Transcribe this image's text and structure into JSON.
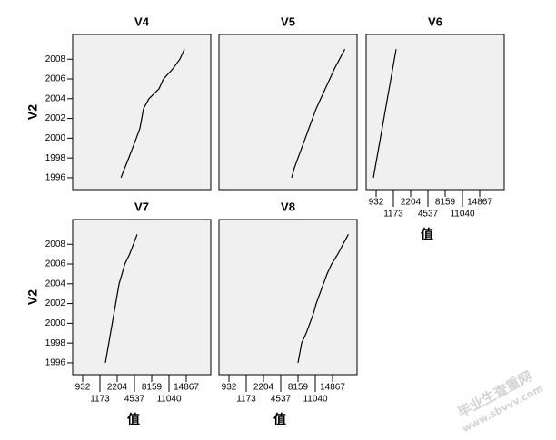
{
  "chart_data": {
    "type": "line",
    "xlabel": "值",
    "ylabel": "V2",
    "xlim": [
      792,
      20495
    ],
    "ylim": [
      1994.8,
      2010.5
    ],
    "xticks": [
      932,
      1173,
      2204,
      4537,
      8159,
      11040,
      14867
    ],
    "yticks": [
      1996,
      1998,
      2000,
      2002,
      2004,
      2006,
      2008
    ],
    "color": "#000000",
    "panels": [
      {
        "title": "V4",
        "show_xaxis": false,
        "show_yaxis": true,
        "x": [
          2720,
          3240,
          3760,
          4280,
          4920,
          5680,
          6060,
          6440,
          7590,
          9370,
          10130,
          11850,
          13460,
          14460
        ],
        "y": [
          1996,
          1997,
          1998,
          1999,
          2000,
          2001,
          2002,
          2003,
          2004,
          2005,
          2006,
          2007,
          2008,
          2009
        ]
      },
      {
        "title": "V5",
        "show_xaxis": false,
        "show_yaxis": false,
        "x": [
          6820,
          7400,
          8159,
          8765,
          9370,
          9980,
          10590,
          11240,
          12250,
          13260,
          14260,
          15270,
          16480,
          17690
        ],
        "y": [
          1996,
          1997,
          1998,
          1999,
          2000,
          2001,
          2002,
          2003,
          2004,
          2005,
          2006,
          2007,
          2008,
          2009
        ]
      },
      {
        "title": "V6",
        "show_xaxis": true,
        "show_yaxis": false,
        "x": [
          894,
          1336
        ],
        "y": [
          1996,
          2009
        ]
      },
      {
        "title": "V7",
        "show_xaxis": true,
        "show_yaxis": true,
        "x": [
          1500,
          2463,
          2852,
          3241,
          3889,
          4407,
          5109
        ],
        "y": [
          1996,
          2004,
          2005,
          2006,
          2007,
          2008,
          2009
        ]
      },
      {
        "title": "V8",
        "show_xaxis": true,
        "show_yaxis": false,
        "x": [
          8159,
          8462,
          8765,
          9523,
          10130,
          10736,
          11241,
          12047,
          12853,
          13658,
          14665,
          16075,
          17284,
          18492
        ],
        "y": [
          1996,
          1997,
          1998,
          1999,
          2000,
          2001,
          2002,
          2003,
          2004,
          2005,
          2006,
          2007,
          2008,
          2009
        ]
      }
    ],
    "watermark": [
      "毕业生查重网",
      "www.sbvvv.com"
    ]
  }
}
